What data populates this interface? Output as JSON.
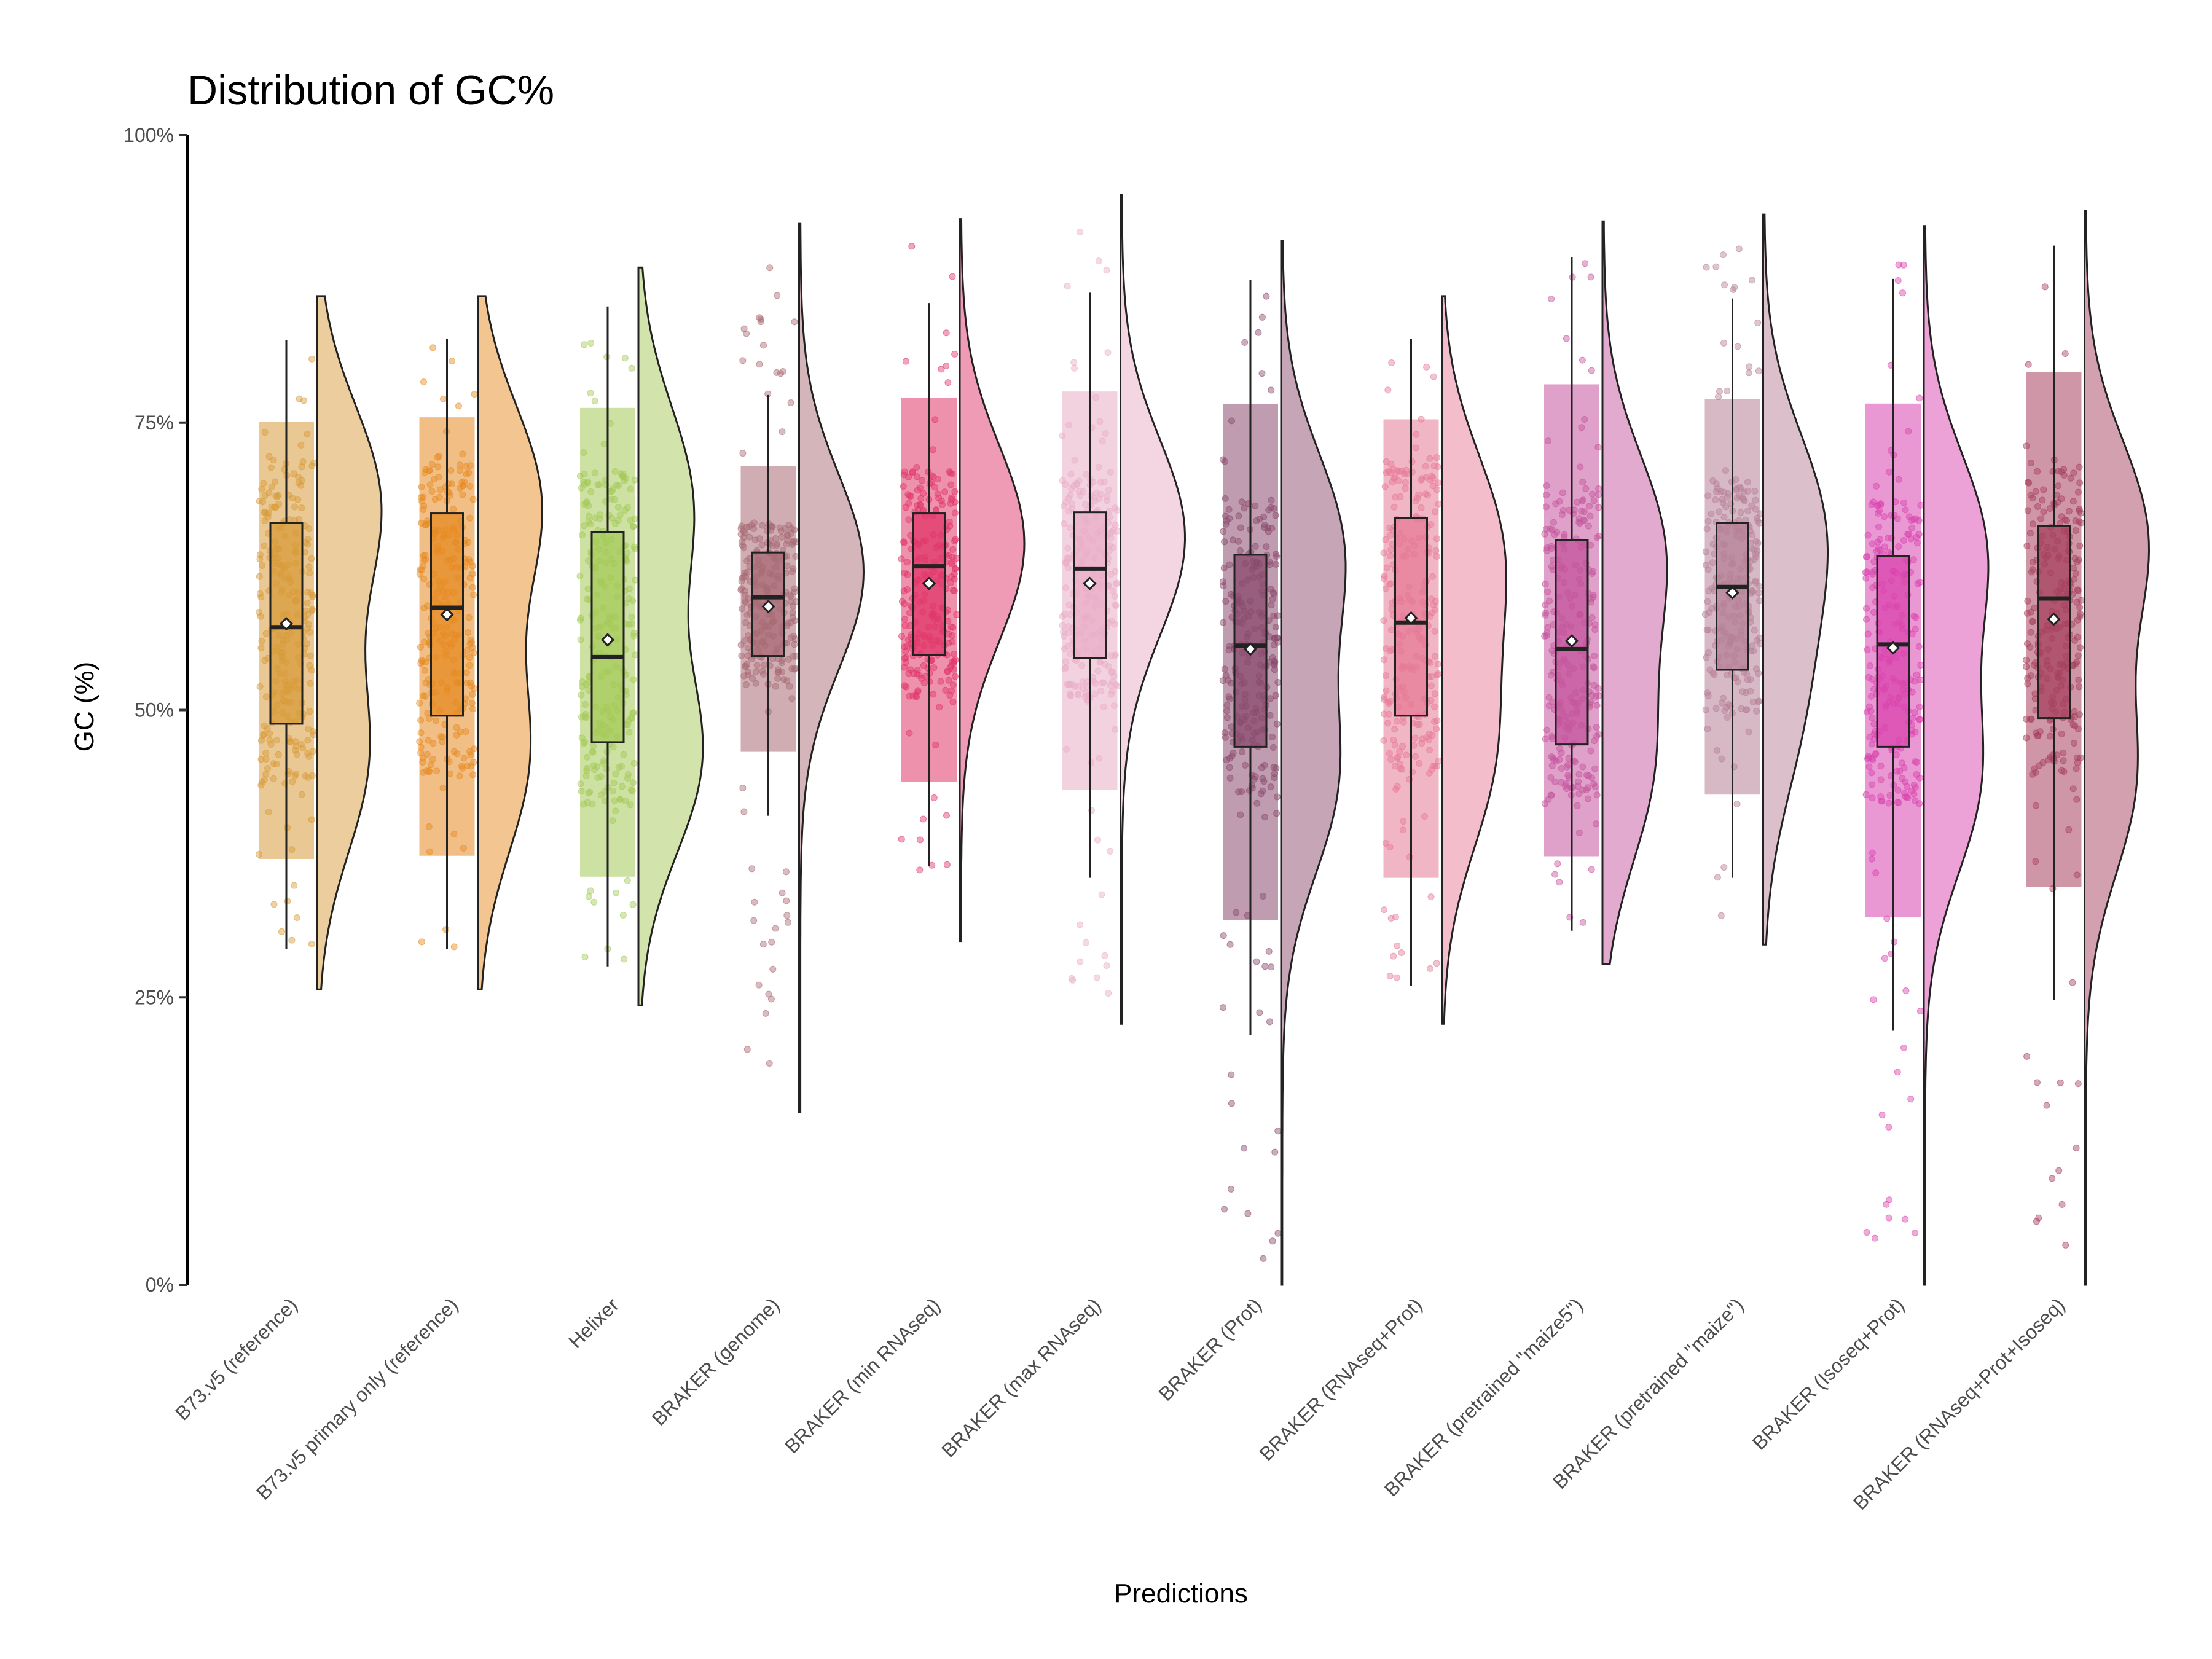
{
  "chart_data": {
    "type": "raincloud",
    "title": "Distribution of GC%",
    "xlabel": "Predictions",
    "ylabel": "GC (%)",
    "ylim": [
      0,
      100
    ],
    "yticks": [
      {
        "value": 0,
        "label": "0%"
      },
      {
        "value": 25,
        "label": "25%"
      },
      {
        "value": 50,
        "label": "50%"
      },
      {
        "value": 75,
        "label": "75%"
      },
      {
        "value": 100,
        "label": "100%"
      }
    ],
    "grid": false,
    "legend": "none",
    "series": [
      {
        "category": "B73.v5 (reference)",
        "color": "#D89B3A",
        "q1": 48.8,
        "median": 57.2,
        "q3": 66.3,
        "mean": 57.5,
        "whisker_low": 29.2,
        "whisker_high": 82.2,
        "violin_min": 25.7,
        "violin_max": 86.0,
        "points_min": 29.0,
        "points_max": 82.5,
        "density_peaks": [
          46,
          68
        ],
        "density_weights": [
          0.8,
          1.0
        ]
      },
      {
        "category": "B73.v5 primary only (reference)",
        "color": "#E68A22",
        "q1": 49.5,
        "median": 58.9,
        "q3": 67.1,
        "mean": 58.3,
        "whisker_low": 29.2,
        "whisker_high": 82.3,
        "violin_min": 25.7,
        "violin_max": 86.0,
        "points_min": 29.0,
        "points_max": 82.5,
        "density_peaks": [
          46,
          68
        ],
        "density_weights": [
          0.8,
          1.0
        ]
      },
      {
        "category": "Helixer",
        "color": "#A4C957",
        "q1": 47.2,
        "median": 54.6,
        "q3": 65.5,
        "mean": 56.1,
        "whisker_low": 27.7,
        "whisker_high": 85.1,
        "violin_min": 24.3,
        "violin_max": 88.5,
        "points_min": 27.5,
        "points_max": 85.0,
        "density_peaks": [
          46,
          68
        ],
        "density_weights": [
          1.0,
          0.85
        ]
      },
      {
        "category": "BRAKER (genome)",
        "color": "#A86A74",
        "q1": 54.7,
        "median": 59.8,
        "q3": 63.7,
        "mean": 59.0,
        "whisker_low": 40.8,
        "whisker_high": 77.4,
        "violin_min": 15.0,
        "violin_max": 92.3,
        "points_min": 17.0,
        "points_max": 90.5,
        "density_peaks": [
          62
        ],
        "density_weights": [
          1.0
        ]
      },
      {
        "category": "BRAKER (min RNAseq)",
        "color": "#E0376A",
        "q1": 54.8,
        "median": 62.5,
        "q3": 67.1,
        "mean": 61.0,
        "whisker_low": 36.4,
        "whisker_high": 85.4,
        "violin_min": 29.9,
        "violin_max": 92.7,
        "points_min": 33.0,
        "points_max": 90.5,
        "density_peaks": [
          64.5
        ],
        "density_weights": [
          1.0
        ]
      },
      {
        "category": "BRAKER (max RNAseq)",
        "color": "#E9ADC7",
        "q1": 54.5,
        "median": 62.3,
        "q3": 67.2,
        "mean": 61.0,
        "whisker_low": 35.4,
        "whisker_high": 86.3,
        "violin_min": 22.7,
        "violin_max": 94.8,
        "points_min": 25.0,
        "points_max": 92.5,
        "density_peaks": [
          65
        ],
        "density_weights": [
          1.0
        ]
      },
      {
        "category": "BRAKER (Prot)",
        "color": "#8A4A6D",
        "q1": 46.8,
        "median": 55.6,
        "q3": 63.5,
        "mean": 55.3,
        "whisker_low": 21.7,
        "whisker_high": 87.4,
        "violin_min": 0.0,
        "violin_max": 90.8,
        "points_min": 1.5,
        "points_max": 88.0,
        "density_peaks": [
          44,
          64
        ],
        "density_weights": [
          0.9,
          1.0
        ]
      },
      {
        "category": "BRAKER (RNAseq+Prot)",
        "color": "#E67A96",
        "q1": 49.5,
        "median": 57.6,
        "q3": 66.7,
        "mean": 58.0,
        "whisker_low": 26.0,
        "whisker_high": 82.3,
        "violin_min": 22.7,
        "violin_max": 86.0,
        "points_min": 26.0,
        "points_max": 82.5,
        "density_peaks": [
          46,
          64
        ],
        "density_weights": [
          0.85,
          1.0
        ]
      },
      {
        "category": "BRAKER (pretrained \"maize5\")",
        "color": "#C4549C",
        "q1": 47.0,
        "median": 55.3,
        "q3": 64.8,
        "mean": 56.0,
        "whisker_low": 30.8,
        "whisker_high": 89.4,
        "violin_min": 27.9,
        "violin_max": 92.5,
        "points_min": 30.5,
        "points_max": 89.5,
        "density_peaks": [
          45,
          64
        ],
        "density_weights": [
          0.8,
          1.0
        ]
      },
      {
        "category": "BRAKER (pretrained \"maize\")",
        "color": "#B68096",
        "q1": 53.5,
        "median": 60.7,
        "q3": 66.3,
        "mean": 60.2,
        "whisker_low": 35.4,
        "whisker_high": 85.8,
        "violin_min": 29.6,
        "violin_max": 93.1,
        "points_min": 32.0,
        "points_max": 90.5,
        "density_peaks": [
          50,
          66
        ],
        "density_weights": [
          0.6,
          1.0
        ]
      },
      {
        "category": "BRAKER (Isoseq+Prot)",
        "color": "#D944AE",
        "q1": 46.8,
        "median": 55.7,
        "q3": 63.4,
        "mean": 55.4,
        "whisker_low": 22.1,
        "whisker_high": 87.5,
        "violin_min": 0.0,
        "violin_max": 92.1,
        "points_min": 2.0,
        "points_max": 89.0,
        "density_peaks": [
          44,
          64
        ],
        "density_weights": [
          0.9,
          1.0
        ]
      },
      {
        "category": "BRAKER (RNAseq+Prot+Isoseq)",
        "color": "#A6405E",
        "q1": 49.3,
        "median": 59.7,
        "q3": 66.0,
        "mean": 57.9,
        "whisker_low": 24.8,
        "whisker_high": 90.4,
        "violin_min": 0.0,
        "violin_max": 93.4,
        "points_min": 1.5,
        "points_max": 89.0,
        "density_peaks": [
          44,
          65
        ],
        "density_weights": [
          0.8,
          1.0
        ]
      }
    ]
  }
}
